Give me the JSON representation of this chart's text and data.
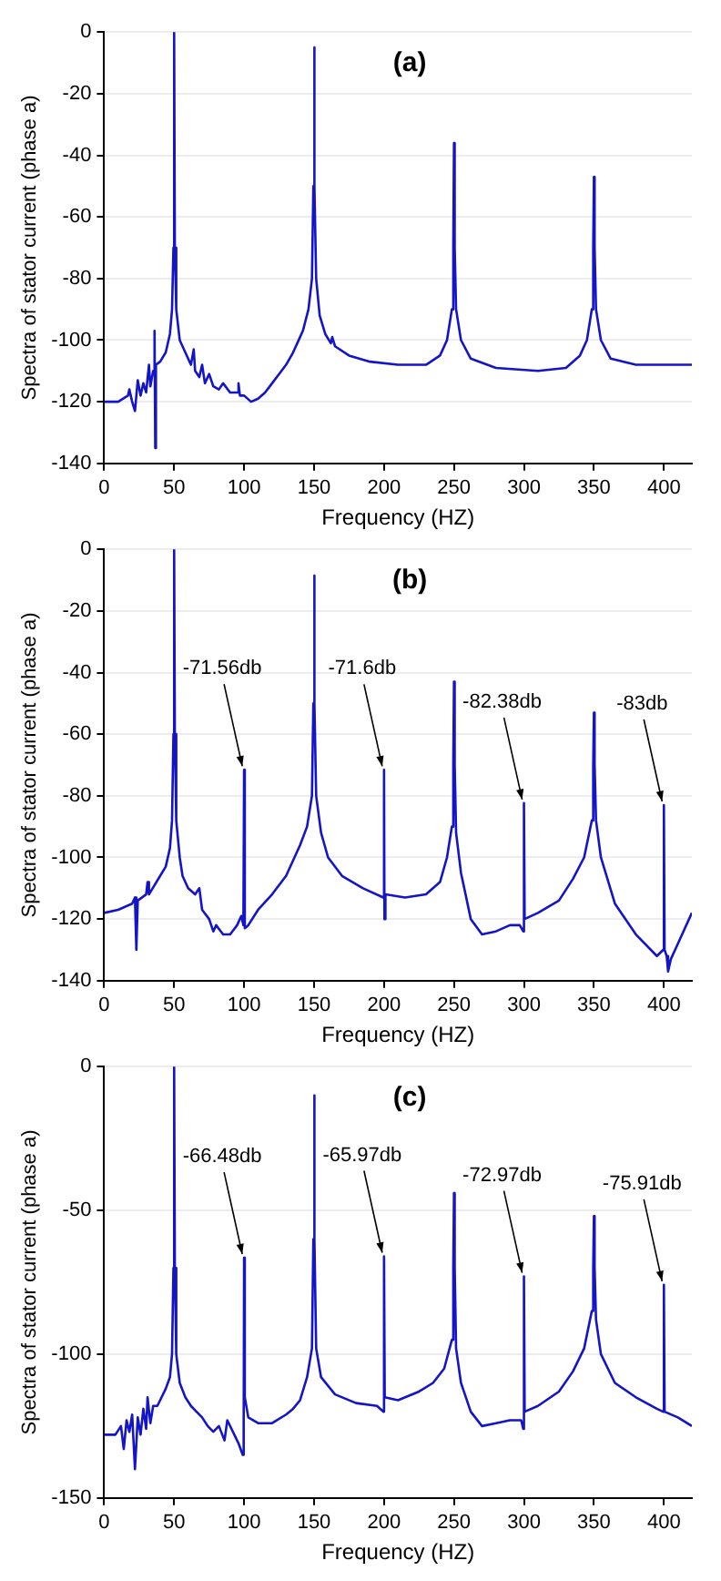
{
  "chart_data": [
    {
      "type": "line",
      "title": "(a)",
      "xlabel": "Frequency (HZ)",
      "ylabel": "Spectra of stator current (phase a)",
      "xlim": [
        0,
        420
      ],
      "xticks": [
        0,
        50,
        100,
        150,
        200,
        250,
        300,
        350,
        400
      ],
      "ylim": [
        -140,
        0
      ],
      "yticks": [
        -140,
        -120,
        -100,
        -80,
        -60,
        -40,
        -20,
        0
      ],
      "grid": "y",
      "legend": false,
      "marker": "none",
      "series": [
        {
          "color": "#1414c8",
          "x": [
            0,
            10,
            17,
            18,
            20,
            22,
            24,
            26,
            28,
            30,
            32,
            33,
            35,
            36,
            36.5,
            37,
            40,
            44,
            47,
            48.5,
            49.5,
            50,
            50.5,
            51.5,
            54,
            58,
            62,
            64,
            65,
            68,
            70,
            72,
            75,
            78,
            82,
            85,
            90,
            95,
            96,
            97,
            100,
            105,
            110,
            115,
            120,
            125,
            130,
            135,
            138,
            142,
            146,
            148.5,
            149.5,
            150,
            150.5,
            151.5,
            154,
            158,
            162,
            163,
            165,
            175,
            190,
            210,
            230,
            240,
            245,
            248.5,
            249.5,
            250,
            250.5,
            251.5,
            255,
            262,
            280,
            310,
            330,
            340,
            345,
            348.5,
            349.5,
            350,
            350.5,
            351.5,
            355,
            362,
            380,
            420
          ],
          "values": [
            -120,
            -120,
            -118,
            -116,
            -120,
            -123,
            -113,
            -118,
            -114,
            -117,
            -108,
            -115,
            -110,
            -97,
            -135,
            -108,
            -107,
            -104,
            -98,
            -90,
            -70,
            0,
            -70,
            -90,
            -100,
            -104,
            -108,
            -103,
            -110,
            -112,
            -108,
            -114,
            -111,
            -115,
            -116,
            -114,
            -117,
            -117,
            -114,
            -118,
            -118,
            -120,
            -119,
            -117,
            -114,
            -111,
            -108,
            -104,
            -101,
            -97,
            -90,
            -80,
            -50,
            -5,
            -50,
            -80,
            -92,
            -98,
            -101,
            -99,
            -102,
            -105,
            -107,
            -108,
            -108,
            -105,
            -100,
            -90,
            -70,
            -36,
            -70,
            -90,
            -100,
            -106,
            -109,
            -110,
            -109,
            -105,
            -100,
            -90,
            -70,
            -47,
            -70,
            -90,
            -100,
            -106,
            -108,
            -108
          ]
        }
      ]
    },
    {
      "type": "line",
      "title": "(b)",
      "xlabel": "Frequency (HZ)",
      "ylabel": "Spectra of stator current (phase a)",
      "xlim": [
        0,
        420
      ],
      "xticks": [
        0,
        50,
        100,
        150,
        200,
        250,
        300,
        350,
        400
      ],
      "ylim": [
        -140,
        0
      ],
      "yticks": [
        -140,
        -120,
        -100,
        -80,
        -60,
        -40,
        -20,
        0
      ],
      "grid": "y",
      "legend": false,
      "marker": "none",
      "annotations": [
        {
          "text": "-71.56db",
          "x": 100,
          "y": -71.56
        },
        {
          "text": "-71.6db",
          "x": 200,
          "y": -71.6
        },
        {
          "text": "-82.38db",
          "x": 300,
          "y": -82.38
        },
        {
          "text": "-83db",
          "x": 400,
          "y": -83
        }
      ],
      "series": [
        {
          "color": "#1414c8",
          "x": [
            0,
            10,
            20,
            22,
            23,
            24,
            30,
            31,
            32,
            40,
            44,
            47,
            48.5,
            49.5,
            50,
            50.5,
            51.5,
            54,
            56,
            60,
            65,
            68,
            70,
            75,
            78,
            80,
            85,
            90,
            95,
            98,
            99.5,
            100,
            100.5,
            103,
            110,
            120,
            130,
            140,
            145,
            148.5,
            149.5,
            150,
            150.5,
            151.5,
            155,
            160,
            170,
            185,
            199.5,
            200,
            200.3,
            201,
            215,
            230,
            240,
            245,
            248.5,
            249.5,
            250,
            250.5,
            251.5,
            255,
            262,
            270,
            280,
            290,
            297,
            299.5,
            300,
            300.5,
            310,
            325,
            335,
            343,
            348.5,
            349.5,
            350,
            350.5,
            351.5,
            355,
            365,
            380,
            395,
            399.5,
            400,
            400.5,
            402,
            403,
            405,
            410,
            420
          ],
          "values": [
            -118,
            -117,
            -115,
            -113,
            -130,
            -114,
            -112,
            -108,
            -112,
            -106,
            -103,
            -97,
            -88,
            -60,
            0,
            -60,
            -88,
            -100,
            -106,
            -110,
            -112,
            -110,
            -117,
            -120,
            -124,
            -122,
            -125,
            -125,
            -122,
            -119,
            -122,
            -71.56,
            -123,
            -122,
            -117,
            -112,
            -106,
            -96,
            -90,
            -80,
            -50,
            -8.5,
            -50,
            -80,
            -92,
            -100,
            -106,
            -110,
            -113,
            -71.6,
            -120,
            -112,
            -113,
            -112,
            -108,
            -100,
            -90,
            -70,
            -43,
            -70,
            -92,
            -105,
            -120,
            -125,
            -124,
            -122,
            -122,
            -124,
            -82.38,
            -120,
            -118,
            -114,
            -107,
            -100,
            -88,
            -70,
            -53,
            -70,
            -88,
            -100,
            -115,
            -125,
            -132,
            -130,
            -83,
            -130,
            -132,
            -137,
            -133,
            -128,
            -118
          ]
        }
      ]
    },
    {
      "type": "line",
      "title": "(c)",
      "xlabel": "Frequency (HZ)",
      "ylabel": "Spectra of stator current (phase a)",
      "xlim": [
        0,
        420
      ],
      "xticks": [
        0,
        50,
        100,
        150,
        200,
        250,
        300,
        350,
        400
      ],
      "ylim": [
        -150,
        0
      ],
      "yticks": [
        -150,
        -100,
        -50,
        0
      ],
      "grid": "y",
      "legend": false,
      "marker": "none",
      "annotations": [
        {
          "text": "-66.48db",
          "x": 100,
          "y": -66.48
        },
        {
          "text": "-65.97db",
          "x": 200,
          "y": -65.97
        },
        {
          "text": "-72.97db",
          "x": 300,
          "y": -72.97
        },
        {
          "text": "-75.91db",
          "x": 400,
          "y": -75.91
        }
      ],
      "series": [
        {
          "color": "#1414c8",
          "x": [
            0,
            8,
            12,
            14,
            16,
            18,
            20,
            22,
            24,
            26,
            28,
            30,
            31,
            33,
            35,
            38,
            40,
            44,
            47,
            48.5,
            49.5,
            50,
            50.5,
            51.5,
            54,
            58,
            62,
            66,
            70,
            74,
            78,
            82,
            86,
            88,
            92,
            96,
            99,
            99.7,
            100,
            100.5,
            103,
            110,
            120,
            130,
            135,
            140,
            145,
            148.5,
            149.5,
            150,
            150.5,
            151.5,
            155,
            165,
            180,
            195,
            199.5,
            200,
            200.5,
            210,
            225,
            235,
            243,
            248.5,
            249.5,
            250,
            250.5,
            251.5,
            255,
            262,
            270,
            280,
            290,
            298,
            299.5,
            300,
            300.5,
            310,
            325,
            335,
            343,
            348.5,
            349.5,
            350,
            350.5,
            351.5,
            355,
            365,
            380,
            395,
            399.5,
            400,
            400.5,
            410,
            420
          ],
          "values": [
            -128,
            -128,
            -125,
            -133,
            -123,
            -127,
            -121,
            -140,
            -122,
            -128,
            -119,
            -126,
            -115,
            -124,
            -118,
            -118,
            -116,
            -112,
            -108,
            -100,
            -70,
            0,
            -70,
            -100,
            -110,
            -115,
            -118,
            -120,
            -122,
            -125,
            -127,
            -125,
            -130,
            -123,
            -127,
            -131,
            -135,
            -125,
            -66.48,
            -115,
            -122,
            -124,
            -124,
            -121,
            -119,
            -116,
            -108,
            -98,
            -60,
            -10,
            -60,
            -98,
            -108,
            -114,
            -117,
            -118,
            -120,
            -65.97,
            -115,
            -116,
            -113,
            -110,
            -105,
            -95,
            -70,
            -44,
            -70,
            -98,
            -110,
            -120,
            -125,
            -124,
            -123,
            -123,
            -126,
            -72.97,
            -120,
            -118,
            -113,
            -106,
            -98,
            -85,
            -70,
            -52,
            -70,
            -88,
            -100,
            -110,
            -115,
            -119,
            -120,
            -75.91,
            -120,
            -122,
            -125
          ]
        }
      ]
    }
  ]
}
